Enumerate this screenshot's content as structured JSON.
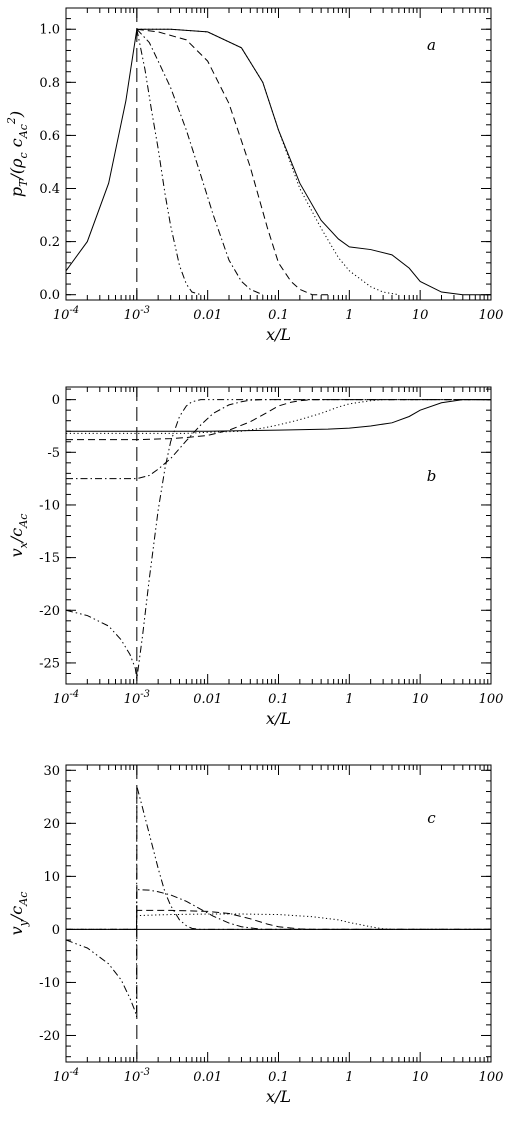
{
  "chart_data": [
    {
      "type": "line",
      "panel_label": "a",
      "xlabel": "x/L",
      "ylabel": "p_T/(ρ_c c_Ac²)",
      "x_scale": "log",
      "xlim": [
        0.0001,
        100
      ],
      "ylim": [
        -0.02,
        1.08
      ],
      "x_ticks": [
        {
          "value": 0.0001,
          "label": "10",
          "exp": "-4"
        },
        {
          "value": 0.001,
          "label": "10",
          "exp": "-3"
        },
        {
          "value": 0.01,
          "label": "0.01",
          "exp": ""
        },
        {
          "value": 0.1,
          "label": "0.1",
          "exp": ""
        },
        {
          "value": 1,
          "label": "1",
          "exp": ""
        },
        {
          "value": 10,
          "label": "10",
          "exp": ""
        },
        {
          "value": 100,
          "label": "100",
          "exp": ""
        }
      ],
      "y_ticks": [
        {
          "value": 0.0,
          "label": "0.0"
        },
        {
          "value": 0.2,
          "label": "0.2"
        },
        {
          "value": 0.4,
          "label": "0.4"
        },
        {
          "value": 0.6,
          "label": "0.6"
        },
        {
          "value": 0.8,
          "label": "0.8"
        },
        {
          "value": 1.0,
          "label": "1.0"
        }
      ],
      "vline_x": 0.001,
      "series": [
        {
          "style": "solid",
          "x": [
            0.0001,
            0.0002,
            0.0004,
            0.0007,
            0.001,
            0.003,
            0.01,
            0.03,
            0.06,
            0.1,
            0.2,
            0.4,
            0.7,
            1,
            2,
            4,
            7,
            10,
            20,
            40,
            100
          ],
          "y": [
            0.09,
            0.2,
            0.42,
            0.73,
            1.0,
            1.0,
            0.99,
            0.93,
            0.8,
            0.62,
            0.42,
            0.28,
            0.21,
            0.18,
            0.17,
            0.15,
            0.1,
            0.05,
            0.01,
            0.0,
            0.0
          ]
        },
        {
          "style": "dotted",
          "x": [
            0.001,
            0.003,
            0.01,
            0.03,
            0.06,
            0.1,
            0.2,
            0.4,
            0.7,
            1,
            2,
            3,
            5
          ],
          "y": [
            1.0,
            1.0,
            0.99,
            0.93,
            0.8,
            0.62,
            0.4,
            0.25,
            0.14,
            0.09,
            0.03,
            0.01,
            0.0
          ]
        },
        {
          "style": "dashed",
          "x": [
            0.001,
            0.002,
            0.005,
            0.01,
            0.02,
            0.04,
            0.07,
            0.1,
            0.15,
            0.2,
            0.3,
            0.5
          ],
          "y": [
            1.0,
            0.99,
            0.96,
            0.88,
            0.72,
            0.48,
            0.25,
            0.12,
            0.05,
            0.02,
            0.0,
            0.0
          ]
        },
        {
          "style": "dashdot",
          "x": [
            0.001,
            0.0015,
            0.002,
            0.003,
            0.005,
            0.008,
            0.012,
            0.02,
            0.03,
            0.04,
            0.06
          ],
          "y": [
            1.0,
            0.95,
            0.88,
            0.78,
            0.62,
            0.45,
            0.3,
            0.13,
            0.05,
            0.02,
            0.0
          ]
        },
        {
          "style": "dashdotdot",
          "x": [
            0.001,
            0.0013,
            0.0016,
            0.002,
            0.0025,
            0.003,
            0.004,
            0.005,
            0.006,
            0.008
          ],
          "y": [
            1.0,
            0.85,
            0.7,
            0.55,
            0.38,
            0.26,
            0.11,
            0.04,
            0.01,
            0.0
          ]
        }
      ]
    },
    {
      "type": "line",
      "panel_label": "b",
      "xlabel": "x/L",
      "ylabel": "v_x/c_Ac",
      "x_scale": "log",
      "xlim": [
        0.0001,
        100
      ],
      "ylim": [
        -27,
        1.2
      ],
      "x_ticks": [
        {
          "value": 0.0001,
          "label": "10",
          "exp": "-4"
        },
        {
          "value": 0.001,
          "label": "10",
          "exp": "-3"
        },
        {
          "value": 0.01,
          "label": "0.01",
          "exp": ""
        },
        {
          "value": 0.1,
          "label": "0.1",
          "exp": ""
        },
        {
          "value": 1,
          "label": "1",
          "exp": ""
        },
        {
          "value": 10,
          "label": "10",
          "exp": ""
        },
        {
          "value": 100,
          "label": "100",
          "exp": ""
        }
      ],
      "y_ticks": [
        {
          "value": 0,
          "label": "0"
        },
        {
          "value": -5,
          "label": "-5"
        },
        {
          "value": -10,
          "label": "-10"
        },
        {
          "value": -15,
          "label": "-15"
        },
        {
          "value": -20,
          "label": "-20"
        },
        {
          "value": -25,
          "label": "-25"
        }
      ],
      "vline_x": 0.001,
      "series": [
        {
          "style": "solid",
          "x": [
            0.0001,
            0.001,
            0.01,
            0.1,
            0.5,
            1,
            2,
            4,
            7,
            10,
            20,
            40,
            100
          ],
          "y": [
            -3.0,
            -3.0,
            -3.0,
            -2.9,
            -2.8,
            -2.7,
            -2.5,
            -2.2,
            -1.6,
            -1.0,
            -0.3,
            0.0,
            0.0
          ]
        },
        {
          "style": "dotted",
          "x": [
            0.0001,
            0.001,
            0.005,
            0.01,
            0.03,
            0.06,
            0.1,
            0.2,
            0.4,
            0.7,
            1,
            2,
            3,
            5,
            100
          ],
          "y": [
            -3.2,
            -3.2,
            -3.2,
            -3.1,
            -3.0,
            -2.7,
            -2.4,
            -1.9,
            -1.3,
            -0.7,
            -0.4,
            -0.1,
            0.0,
            0.0,
            0.0
          ]
        },
        {
          "style": "dashed",
          "x": [
            0.0001,
            0.001,
            0.003,
            0.005,
            0.01,
            0.02,
            0.04,
            0.07,
            0.1,
            0.15,
            0.2,
            0.3,
            0.5,
            100
          ],
          "y": [
            -3.8,
            -3.8,
            -3.7,
            -3.6,
            -3.4,
            -2.9,
            -2.1,
            -1.2,
            -0.6,
            -0.25,
            -0.1,
            0.0,
            0.0,
            0.0
          ]
        },
        {
          "style": "dashdot",
          "x": [
            0.0001,
            0.001,
            0.0015,
            0.002,
            0.003,
            0.005,
            0.008,
            0.012,
            0.02,
            0.03,
            0.04,
            0.06,
            100
          ],
          "y": [
            -7.5,
            -7.5,
            -7.2,
            -6.6,
            -5.6,
            -3.9,
            -2.4,
            -1.3,
            -0.5,
            -0.2,
            -0.05,
            0.0,
            0.0
          ]
        },
        {
          "style": "dashdotdot",
          "x": [
            0.0001,
            0.0002,
            0.0004,
            0.0006,
            0.0008,
            0.00095,
            0.001,
            0.0012,
            0.0015,
            0.002,
            0.0025,
            0.003,
            0.004,
            0.005,
            0.006,
            0.008,
            100
          ],
          "y": [
            -20.0,
            -20.5,
            -21.5,
            -22.8,
            -24.2,
            -25.5,
            -26.5,
            -22.5,
            -17.0,
            -10.5,
            -6.5,
            -4.0,
            -1.6,
            -0.6,
            -0.2,
            0.0,
            0.0
          ]
        }
      ]
    },
    {
      "type": "line",
      "panel_label": "c",
      "xlabel": "x/L",
      "ylabel": "v_y/c_Ac",
      "x_scale": "log",
      "xlim": [
        0.0001,
        100
      ],
      "ylim": [
        -25,
        31
      ],
      "x_ticks": [
        {
          "value": 0.0001,
          "label": "10",
          "exp": "-4"
        },
        {
          "value": 0.001,
          "label": "10",
          "exp": "-3"
        },
        {
          "value": 0.01,
          "label": "0.01",
          "exp": ""
        },
        {
          "value": 0.1,
          "label": "0.1",
          "exp": ""
        },
        {
          "value": 1,
          "label": "1",
          "exp": ""
        },
        {
          "value": 10,
          "label": "10",
          "exp": ""
        },
        {
          "value": 100,
          "label": "100",
          "exp": ""
        }
      ],
      "y_ticks": [
        {
          "value": 30,
          "label": "30"
        },
        {
          "value": 20,
          "label": "20"
        },
        {
          "value": 10,
          "label": "10"
        },
        {
          "value": 0,
          "label": "0"
        },
        {
          "value": -10,
          "label": "-10"
        },
        {
          "value": -20,
          "label": "-20"
        }
      ],
      "vline_x": 0.001,
      "series": [
        {
          "style": "solid",
          "x": [
            0.0001,
            100
          ],
          "y": [
            0.0,
            0.0
          ]
        },
        {
          "style": "dotted",
          "x": [
            0.0001,
            0.00099,
            0.001,
            0.003,
            0.01,
            0.03,
            0.1,
            0.3,
            0.7,
            1,
            2,
            3,
            5,
            100
          ],
          "y": [
            0.0,
            0.0,
            2.6,
            2.8,
            2.9,
            2.9,
            2.8,
            2.4,
            1.8,
            1.3,
            0.5,
            0.1,
            0.0,
            0.0
          ]
        },
        {
          "style": "dashed",
          "x": [
            0.0001,
            0.00099,
            0.001,
            0.003,
            0.01,
            0.02,
            0.04,
            0.07,
            0.1,
            0.2,
            0.3,
            100
          ],
          "y": [
            0.0,
            0.0,
            3.6,
            3.6,
            3.4,
            3.0,
            2.0,
            1.0,
            0.5,
            0.1,
            0.0,
            0.0
          ]
        },
        {
          "style": "dashdot",
          "x": [
            0.0001,
            0.00099,
            0.001,
            0.0015,
            0.002,
            0.003,
            0.005,
            0.008,
            0.012,
            0.02,
            0.03,
            0.06,
            100
          ],
          "y": [
            0.0,
            0.0,
            7.5,
            7.4,
            7.1,
            6.5,
            5.3,
            3.8,
            2.5,
            1.2,
            0.5,
            0.0,
            0.0
          ]
        },
        {
          "style": "dashdotdot",
          "x": [
            0.0001,
            0.0002,
            0.0004,
            0.0006,
            0.0008,
            0.00095,
            0.00099,
            0.001,
            0.0012,
            0.0015,
            0.002,
            0.0025,
            0.003,
            0.004,
            0.005,
            0.006,
            0.008,
            100
          ],
          "y": [
            -2.0,
            -3.5,
            -6.5,
            -9.5,
            -13.0,
            -15.5,
            -16.5,
            27.0,
            23.0,
            18.0,
            11.5,
            7.0,
            4.5,
            1.8,
            0.7,
            0.2,
            0.0,
            0.0
          ]
        }
      ]
    }
  ]
}
